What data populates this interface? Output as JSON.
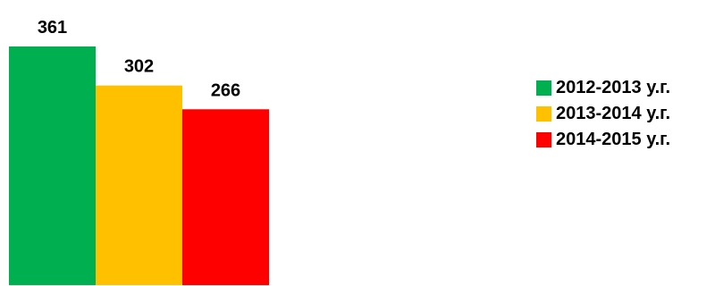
{
  "chart_data": {
    "type": "bar",
    "title": "",
    "xlabel": "",
    "ylabel": "",
    "categories": [
      "2012-2013 у.г.",
      "2013-2014 у.г.",
      "2014-2015 у.г."
    ],
    "values": [
      361,
      302,
      266
    ],
    "colors": [
      "#00b050",
      "#ffc000",
      "#ff0000"
    ],
    "ylim": [
      0,
      361
    ],
    "grid": false,
    "legend_position": "right",
    "data_labels": true
  },
  "legend": {
    "items": [
      {
        "label": "2012-2013 у.г.",
        "color": "#00b050"
      },
      {
        "label": "2013-2014 у.г.",
        "color": "#ffc000"
      },
      {
        "label": "2014-2015 у.г.",
        "color": "#ff0000"
      }
    ]
  }
}
